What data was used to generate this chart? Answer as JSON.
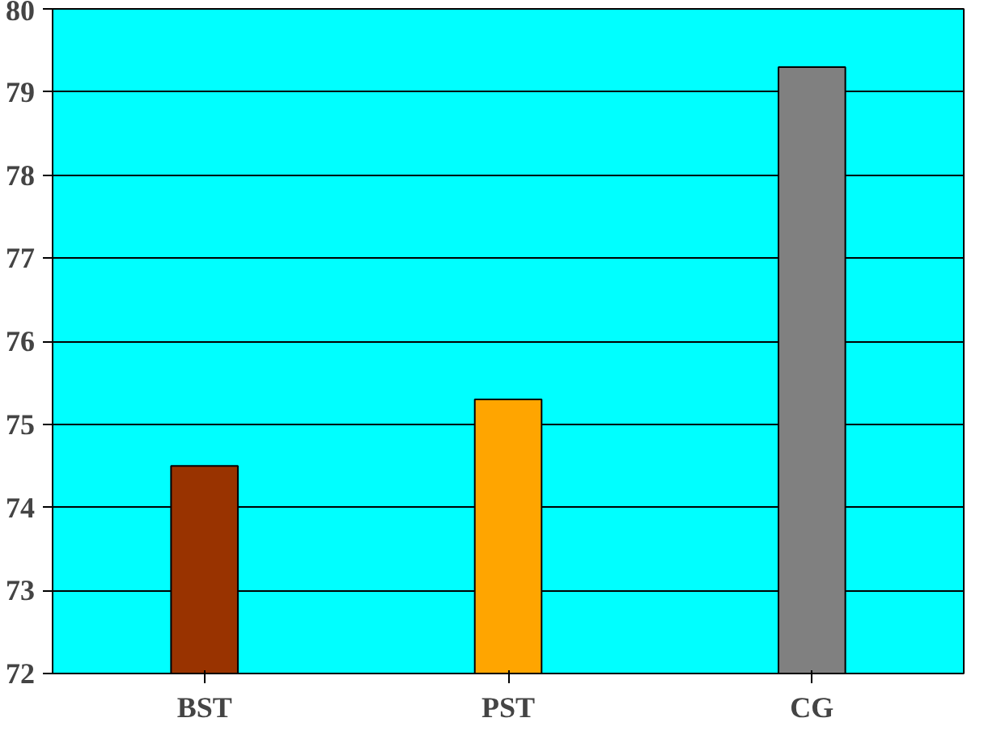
{
  "chart_data": {
    "type": "bar",
    "categories": [
      "BST",
      "PST",
      "CG"
    ],
    "values": [
      74.5,
      75.3,
      79.3
    ],
    "colors": [
      "#993300",
      "#ffa500",
      "#808080"
    ],
    "ylim": [
      72,
      80
    ],
    "yticks": [
      72,
      73,
      74,
      75,
      76,
      77,
      78,
      79,
      80
    ],
    "grid": "y"
  }
}
